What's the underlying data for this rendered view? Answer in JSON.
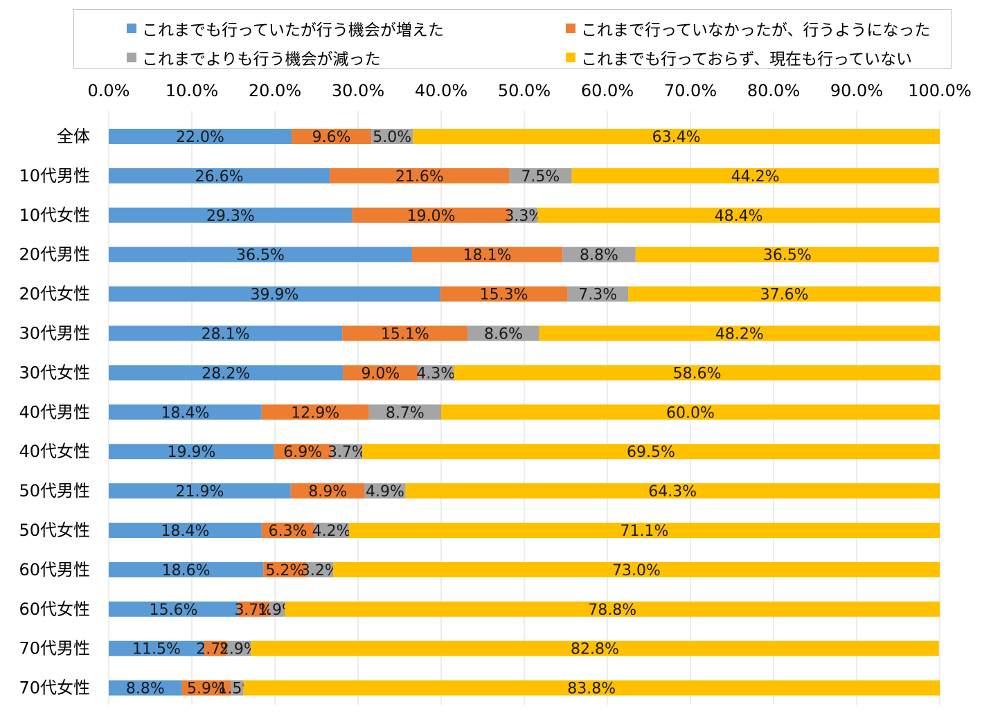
{
  "chart_data": {
    "type": "bar",
    "orientation": "horizontal",
    "stacked": true,
    "legend_position": "top",
    "grid": true,
    "xlim": [
      0,
      100
    ],
    "x_ticks": [
      "0.0%",
      "10.0%",
      "20.0%",
      "30.0%",
      "40.0%",
      "50.0%",
      "60.0%",
      "70.0%",
      "80.0%",
      "90.0%",
      "100.0%"
    ],
    "categories": [
      "全体",
      "10代男性",
      "10代女性",
      "20代男性",
      "20代女性",
      "30代男性",
      "30代女性",
      "40代男性",
      "40代女性",
      "50代男性",
      "50代女性",
      "60代男性",
      "60代女性",
      "70代男性",
      "70代女性"
    ],
    "series": [
      {
        "name": "これまでも行っていたが行う機会が増えた",
        "color": "#5b9bd5",
        "values": [
          22.0,
          26.6,
          29.3,
          36.5,
          39.9,
          28.1,
          28.2,
          18.4,
          19.9,
          21.9,
          18.4,
          18.6,
          15.6,
          11.5,
          8.8
        ]
      },
      {
        "name": "これまで行っていなかったが、行うようになった",
        "color": "#ed7d31",
        "values": [
          9.6,
          21.6,
          19.0,
          18.1,
          15.3,
          15.1,
          9.0,
          12.9,
          6.9,
          8.9,
          6.3,
          5.2,
          3.7,
          2.7,
          5.9
        ]
      },
      {
        "name": "これまでよりも行う機会が減った",
        "color": "#a5a5a5",
        "values": [
          5.0,
          7.5,
          3.3,
          8.8,
          7.3,
          8.6,
          4.3,
          8.7,
          3.7,
          4.9,
          4.2,
          3.2,
          1.9,
          2.9,
          1.5
        ]
      },
      {
        "name": "これまでも行っておらず、現在も行っていない",
        "color": "#ffc000",
        "values": [
          63.4,
          44.2,
          48.4,
          36.5,
          37.6,
          48.2,
          58.6,
          60.0,
          69.5,
          64.3,
          71.1,
          73.0,
          78.8,
          82.8,
          83.8
        ]
      }
    ]
  }
}
